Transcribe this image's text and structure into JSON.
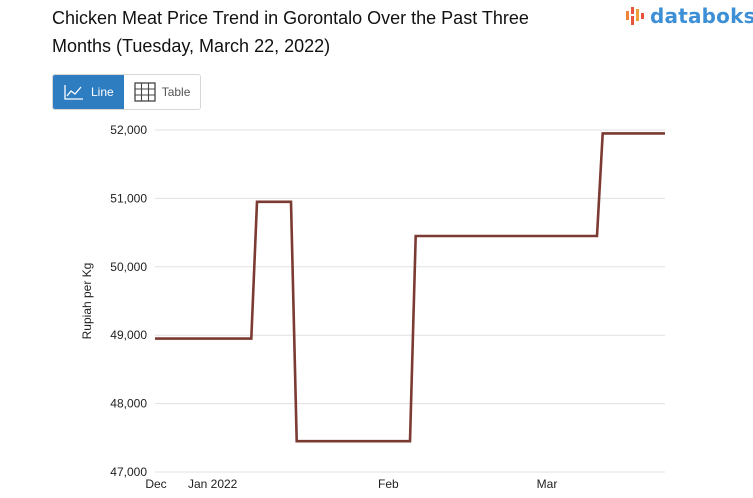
{
  "header": {
    "title": "Chicken Meat Price Trend in Gorontalo Over the Past Three Months (Tuesday, March 22, 2022)"
  },
  "logo": {
    "text": "databoks",
    "icon": "bar-pattern-icon"
  },
  "tabs": [
    {
      "label": "Line",
      "icon": "line-chart-icon",
      "active": true
    },
    {
      "label": "Table",
      "icon": "table-grid-icon",
      "active": false
    }
  ],
  "colors": {
    "line": "#7b3a32",
    "grid": "#e0e0e0",
    "accent": "#2f7dc1",
    "logo": "#3d8fd6"
  },
  "chart_data": {
    "type": "line",
    "ylabel": "Rupiah per Kg",
    "ylim": [
      47000,
      52000
    ],
    "yticks": [
      47000,
      48000,
      49000,
      50000,
      51000,
      52000
    ],
    "ytick_labels": [
      "47,000",
      "48,000",
      "49,000",
      "50,000",
      "51,000",
      "52,000"
    ],
    "xlim": [
      "2021-12-22",
      "2022-03-22"
    ],
    "xticks": [
      {
        "date": "2021-12-22",
        "label": "Dec"
      },
      {
        "date": "2022-01-01",
        "label": "Jan 2022"
      },
      {
        "date": "2022-02-01",
        "label": "Feb"
      },
      {
        "date": "2022-03-01",
        "label": "Mar"
      }
    ],
    "grid": true,
    "series": [
      {
        "x": [
          "2021-12-22",
          "2022-01-08",
          "2022-01-09",
          "2022-01-15",
          "2022-01-16",
          "2022-02-05",
          "2022-02-06",
          "2022-03-10",
          "2022-03-11",
          "2022-03-22"
        ],
        "values": [
          48950,
          48950,
          50950,
          50950,
          47450,
          47450,
          50450,
          50450,
          51950,
          51950
        ]
      }
    ]
  }
}
